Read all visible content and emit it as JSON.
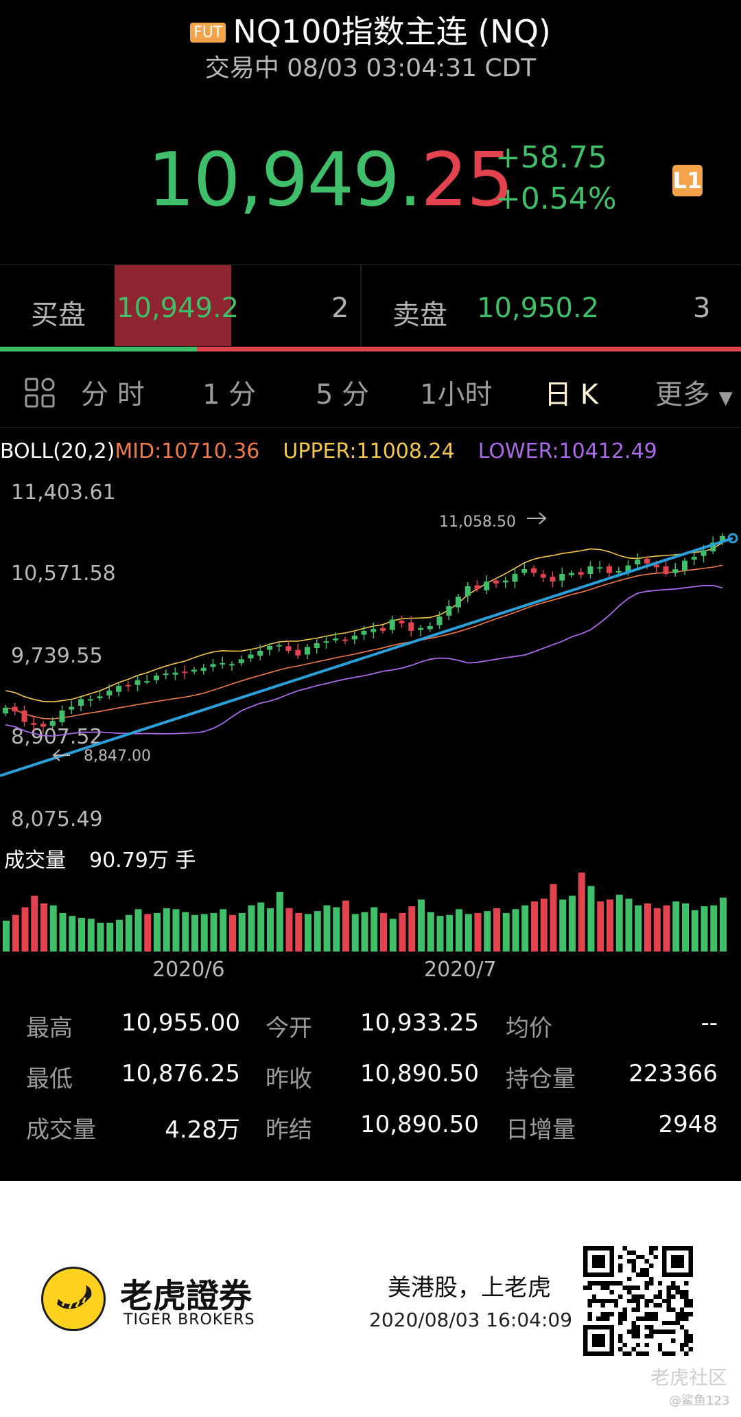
{
  "header": {
    "badge": "FUT",
    "title": "NQ100指数主连 (NQ)",
    "status_line": "交易中 08/03 03:04:31 CDT"
  },
  "quote": {
    "price_green": "10,949.",
    "price_red": "25",
    "change": "+58.75",
    "change_pct": "+0.54%",
    "level_badge": "L1",
    "up_color": "#3fbf69",
    "down_color": "#e3434f"
  },
  "book": {
    "bid_label": "买盘",
    "bid_price": "10,949.2",
    "bid_qty": "2",
    "ask_label": "卖盘",
    "ask_price": "10,950.2",
    "ask_qty": "3"
  },
  "tabs": {
    "items": [
      "分 时",
      "1 分",
      "5 分",
      "1小时",
      "日 K",
      "更多"
    ],
    "active_index": 4
  },
  "indicator": {
    "name": "BOLL(20,2)",
    "mid": "MID:10710.36",
    "upper": "UPPER:11008.24",
    "lower": "LOWER:10412.49",
    "mid_color": "#ef7a4a",
    "upper_color": "#f2c94c",
    "lower_color": "#a86ae6"
  },
  "chart_data": {
    "type": "candlestick",
    "ylim": [
      8075.49,
      11403.61
    ],
    "y_ticks": [
      "11,403.61",
      "10,571.58",
      "9,739.55",
      "8,907.52",
      "8,075.49"
    ],
    "annotations": {
      "high": "11,058.50",
      "low": "8,847.00"
    },
    "x_ticks": [
      "2020/6",
      "2020/7"
    ],
    "volume_label": "成交量",
    "volume_value": "90.79万 手",
    "close": [
      9140,
      9100,
      8990,
      8960,
      8940,
      9000,
      9110,
      9150,
      9230,
      9230,
      9260,
      9320,
      9370,
      9370,
      9430,
      9420,
      9480,
      9500,
      9510,
      9510,
      9540,
      9560,
      9600,
      9610,
      9600,
      9650,
      9700,
      9740,
      9790,
      9800,
      9740,
      9690,
      9780,
      9820,
      9840,
      9870,
      9850,
      9900,
      9950,
      9970,
      9950,
      10070,
      10030,
      9950,
      9980,
      10000,
      10100,
      10210,
      10310,
      10420,
      10390,
      10470,
      10450,
      10480,
      10550,
      10600,
      10560,
      10510,
      10470,
      10550,
      10560,
      10540,
      10630,
      10620,
      10560,
      10580,
      10640,
      10700,
      10660,
      10620,
      10550,
      10600,
      10690,
      10730,
      10800,
      10880,
      10949
    ],
    "volume": [
      32,
      38,
      46,
      58,
      50,
      48,
      40,
      37,
      35,
      34,
      30,
      30,
      33,
      38,
      44,
      39,
      40,
      45,
      44,
      41,
      38,
      39,
      40,
      44,
      38,
      40,
      48,
      51,
      45,
      62,
      45,
      40,
      39,
      42,
      48,
      46,
      53,
      39,
      41,
      46,
      40,
      34,
      40,
      47,
      54,
      41,
      37,
      38,
      44,
      39,
      40,
      42,
      45,
      40,
      44,
      48,
      52,
      55,
      70,
      54,
      58,
      82,
      68,
      52,
      54,
      59,
      55,
      48,
      50,
      45,
      48,
      52,
      50,
      43,
      47,
      48,
      56
    ]
  },
  "stats": [
    {
      "label": "最高",
      "value": "10,955.00"
    },
    {
      "label": "今开",
      "value": "10,933.25"
    },
    {
      "label": "均价",
      "value": "--"
    },
    {
      "label": "最低",
      "value": "10,876.25"
    },
    {
      "label": "昨收",
      "value": "10,890.50"
    },
    {
      "label": "持仓量",
      "value": "223366"
    },
    {
      "label": "成交量",
      "value": "4.28万"
    },
    {
      "label": "昨结",
      "value": "10,890.50"
    },
    {
      "label": "日增量",
      "value": "2948"
    }
  ],
  "footer": {
    "brand_cn": "老虎證券",
    "brand_en": "TIGER BROKERS",
    "slogan": "美港股，上老虎",
    "timestamp": "2020/08/03 16:04:09",
    "community": "老虎社区",
    "author": "@鲨鱼123"
  }
}
